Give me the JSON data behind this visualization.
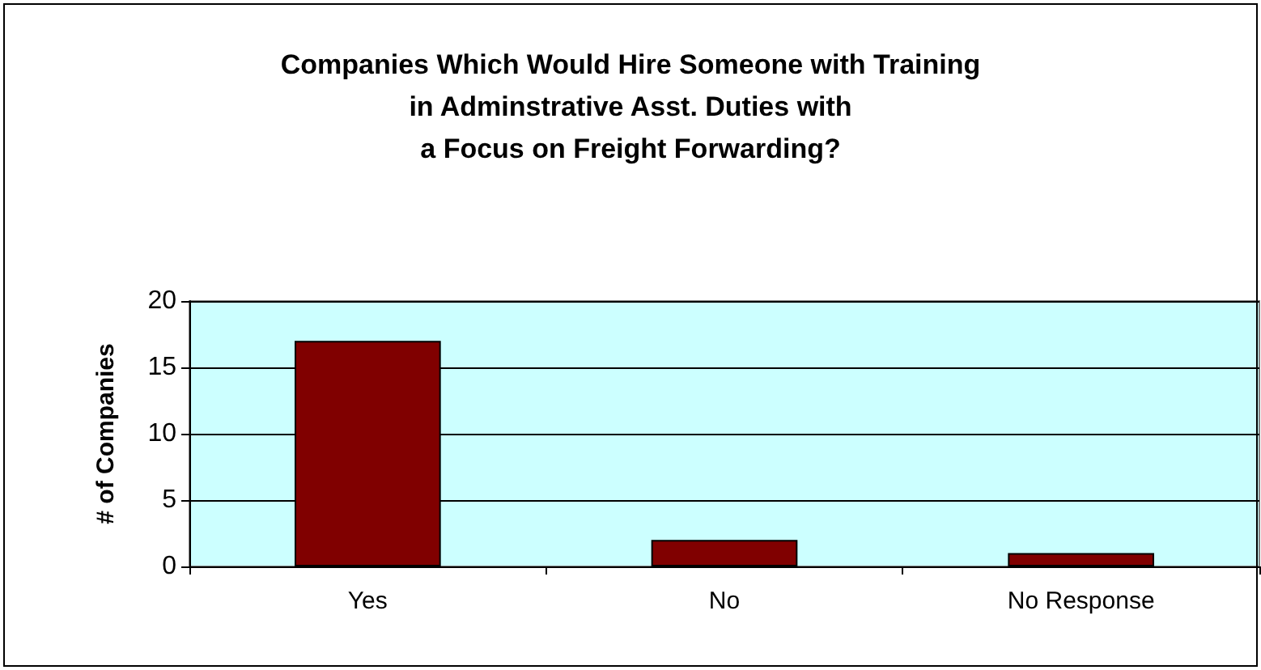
{
  "chart_data": {
    "type": "bar",
    "title": "Companies Which Would Hire Someone with Training\nin Adminstrative Asst. Duties with\na Focus on Freight Forwarding?",
    "ylabel": "# of Companies",
    "categories": [
      "Yes",
      "No",
      "No Response"
    ],
    "values": [
      17,
      2,
      1
    ],
    "color": "#800000",
    "ylim": [
      0,
      20
    ],
    "yticks": [
      0,
      5,
      10,
      15,
      20
    ],
    "grid": "y"
  }
}
